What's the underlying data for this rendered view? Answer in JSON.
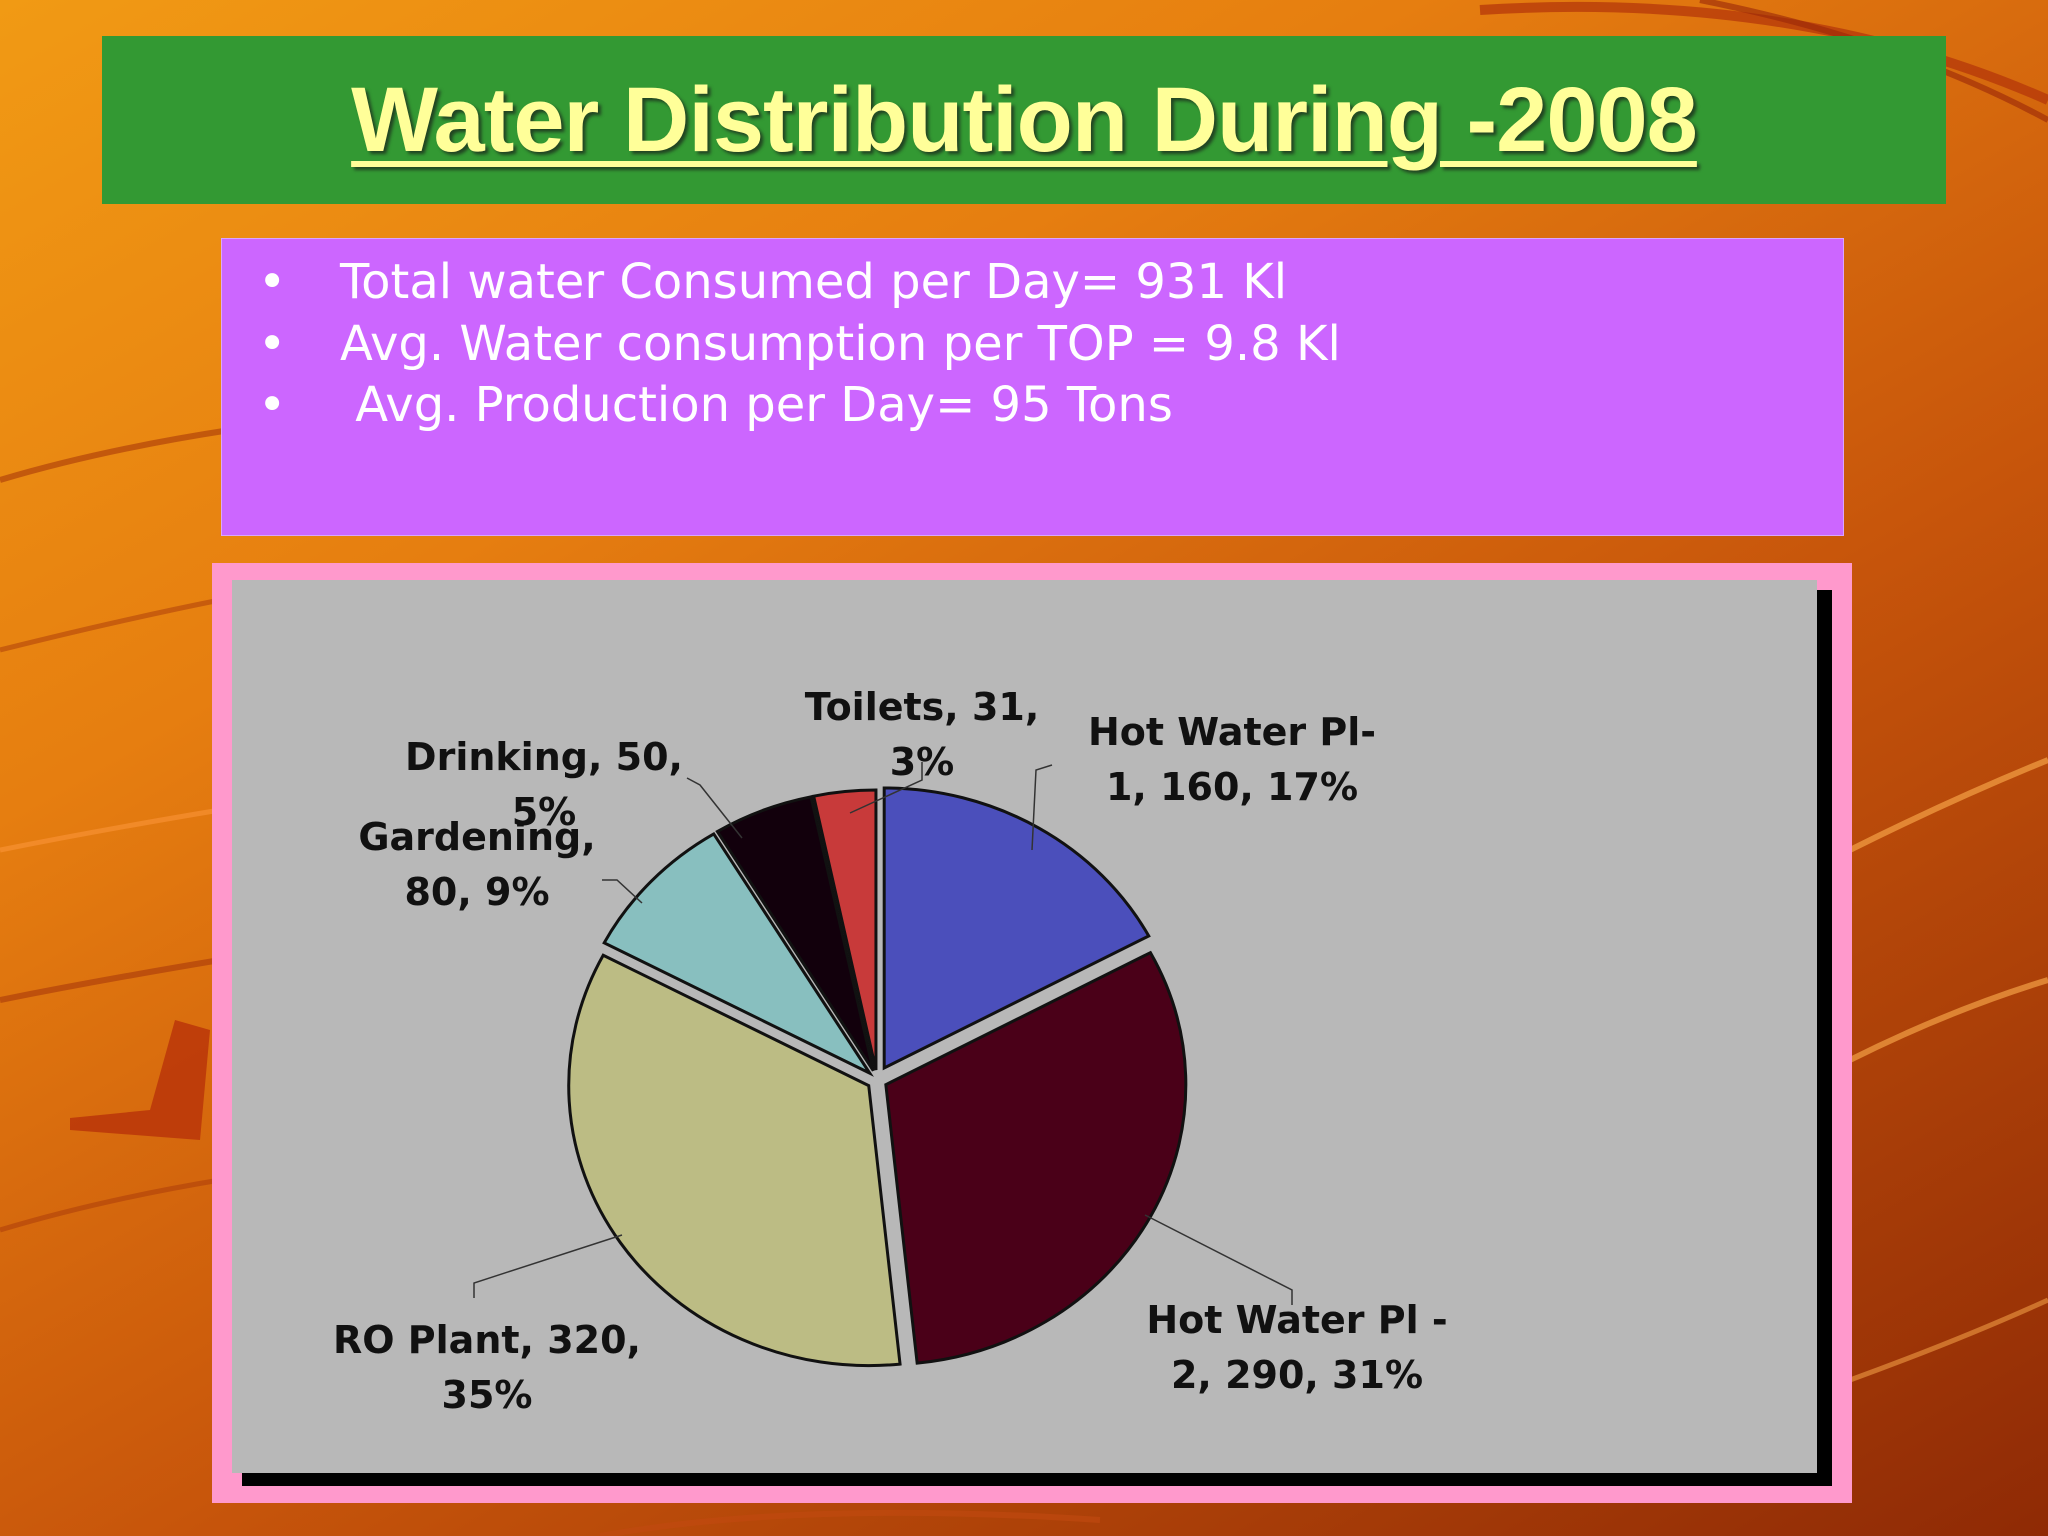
{
  "slide": {
    "title": "Water Distribution During -2008",
    "bullets": [
      {
        "marker": "•",
        "text": "Total water Consumed per Day= 931 Kl"
      },
      {
        "marker": "•",
        "text": "Avg. Water consumption per TOP = 9.8 Kl"
      },
      {
        "marker": "•",
        "text": " Avg. Production per Day= 95 Tons"
      }
    ]
  },
  "chart_data": {
    "type": "pie",
    "title": "",
    "slices": [
      {
        "label_lines": [
          "Hot Water Pl-",
          "1, 160, 17%"
        ],
        "value": 160,
        "percent": 17,
        "color": "#4b4fbb"
      },
      {
        "label_lines": [
          "Hot Water Pl -",
          "2, 290, 31%"
        ],
        "value": 290,
        "percent": 31,
        "color": "#4a0018"
      },
      {
        "label_lines": [
          "RO Plant, 320,",
          "35%"
        ],
        "value": 320,
        "percent": 35,
        "color": "#bcbc84"
      },
      {
        "label_lines": [
          "Gardening,",
          "80, 9%"
        ],
        "value": 80,
        "percent": 9,
        "color": "#88bfbf"
      },
      {
        "label_lines": [
          "Drinking, 50,",
          "5%"
        ],
        "value": 50,
        "percent": 5,
        "color": "#12000c"
      },
      {
        "label_lines": [
          "Toilets, 31,",
          "3%"
        ],
        "value": 31,
        "percent": 3,
        "color": "#c83a3a"
      }
    ]
  }
}
